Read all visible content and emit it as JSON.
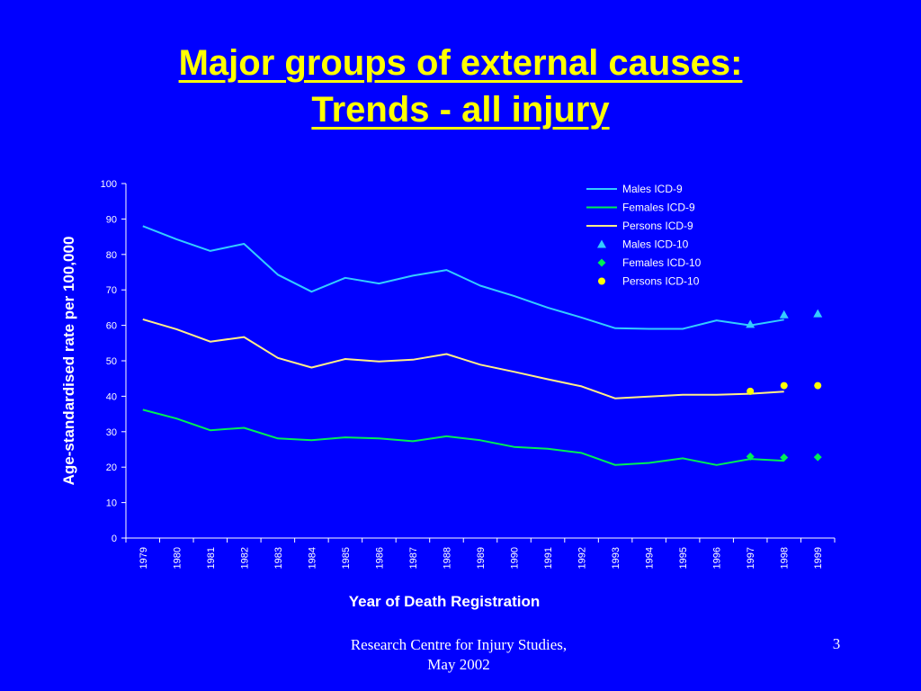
{
  "slide": {
    "title_line1": "Major groups of external causes:",
    "title_line2": "Trends - all injury",
    "footer_line1": "Research Centre for Injury Studies,",
    "footer_line2": "May 2002",
    "page_number": "3"
  },
  "colors": {
    "background": "#0000ff",
    "title": "#ffff00",
    "males": "#33ccff",
    "females": "#00ee55",
    "persons": "#ffee88",
    "persons_marker": "#ffff00",
    "text": "#ffffff"
  },
  "chart_data": {
    "type": "line",
    "xlabel": "Year of Death Registration",
    "ylabel": "Age-standardised rate per 100,000",
    "ylim": [
      0,
      100
    ],
    "yticks": [
      0,
      10,
      20,
      30,
      40,
      50,
      60,
      70,
      80,
      90,
      100
    ],
    "categories": [
      "1979",
      "1980",
      "1981",
      "1982",
      "1983",
      "1984",
      "1985",
      "1986",
      "1987",
      "1988",
      "1989",
      "1990",
      "1991",
      "1992",
      "1993",
      "1994",
      "1995",
      "1996",
      "1997",
      "1998",
      "1999"
    ],
    "legend_position": "top-right",
    "grid": false,
    "series": [
      {
        "name": "Males ICD-9",
        "kind": "line",
        "color_key": "males",
        "values": [
          88,
          84.3,
          81,
          83,
          74.3,
          69.5,
          73.4,
          71.8,
          74,
          75.6,
          71.2,
          68.3,
          65,
          62.2,
          59.2,
          59,
          59,
          61.4,
          60,
          61.6,
          null
        ]
      },
      {
        "name": "Females ICD-9",
        "kind": "line",
        "color_key": "females",
        "values": [
          36.2,
          33.7,
          30.4,
          31.1,
          28.1,
          27.6,
          28.4,
          28.1,
          27.3,
          28.7,
          27.6,
          25.7,
          25.2,
          24,
          20.6,
          21.2,
          22.5,
          20.6,
          22.3,
          21.8,
          null
        ]
      },
      {
        "name": "Persons ICD-9",
        "kind": "line",
        "color_key": "persons",
        "values": [
          61.7,
          58.9,
          55.4,
          56.7,
          50.8,
          48.1,
          50.5,
          49.8,
          50.3,
          51.9,
          48.9,
          46.9,
          44.8,
          42.8,
          39.4,
          39.9,
          40.4,
          40.4,
          40.7,
          41.3,
          null
        ]
      },
      {
        "name": "Males ICD-10",
        "kind": "marker",
        "marker": "triangle",
        "color_key": "males",
        "values": [
          null,
          null,
          null,
          null,
          null,
          null,
          null,
          null,
          null,
          null,
          null,
          null,
          null,
          null,
          null,
          null,
          null,
          null,
          60.3,
          63,
          63.3
        ]
      },
      {
        "name": "Females ICD-10",
        "kind": "marker",
        "marker": "diamond",
        "color_key": "females",
        "values": [
          null,
          null,
          null,
          null,
          null,
          null,
          null,
          null,
          null,
          null,
          null,
          null,
          null,
          null,
          null,
          null,
          null,
          null,
          23,
          22.7,
          22.8
        ]
      },
      {
        "name": "Persons ICD-10",
        "kind": "marker",
        "marker": "circle",
        "color_key": "persons_marker",
        "values": [
          null,
          null,
          null,
          null,
          null,
          null,
          null,
          null,
          null,
          null,
          null,
          null,
          null,
          null,
          null,
          null,
          null,
          null,
          41.4,
          43,
          43
        ]
      }
    ]
  }
}
